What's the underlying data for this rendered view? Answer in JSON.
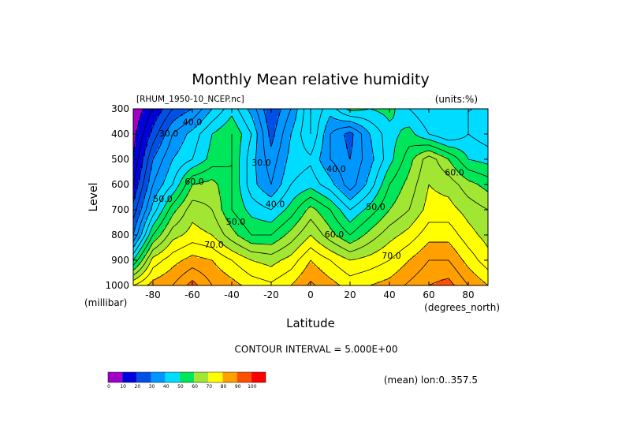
{
  "chart_data": {
    "type": "contour",
    "title": "Monthly Mean relative humidity",
    "dataset_label": "[RHUM_1950-10_NCEP.nc]",
    "units_label": "(units:%)",
    "xlabel": "Latitude",
    "x_units": "(degrees_north)",
    "ylabel": "Level",
    "y_units": "(millibar)",
    "xlim": [
      -90,
      90
    ],
    "ylim": [
      300,
      1000
    ],
    "y_inverted": true,
    "x_ticks": [
      -80,
      -60,
      -40,
      -20,
      0,
      20,
      40,
      60,
      80
    ],
    "y_ticks": [
      300,
      400,
      500,
      600,
      700,
      800,
      900,
      1000
    ],
    "x_tick_labels": [
      "-80",
      "-60",
      "-40",
      "-20",
      "0",
      "20",
      "40",
      "60",
      "80"
    ],
    "y_tick_labels": [
      "300",
      "400",
      "500",
      "600",
      "700",
      "800",
      "900",
      "1000"
    ],
    "contour_interval_text": "CONTOUR INTERVAL = 5.000E+00",
    "footer_text": "(mean) lon:0..357.5",
    "grid": false,
    "latitudes": [
      -90,
      -80,
      -70,
      -60,
      -50,
      -40,
      -30,
      -20,
      -10,
      0,
      10,
      20,
      30,
      40,
      50,
      60,
      70,
      80,
      90
    ],
    "levels": [
      300,
      400,
      500,
      600,
      700,
      800,
      900,
      1000
    ],
    "values": [
      [
        5,
        15,
        25,
        30,
        40,
        48,
        38,
        25,
        35,
        50,
        42,
        52,
        50,
        52,
        45,
        40,
        40,
        45,
        45
      ],
      [
        8,
        22,
        35,
        42,
        50,
        55,
        45,
        28,
        40,
        50,
        35,
        28,
        40,
        48,
        52,
        45,
        40,
        45,
        42
      ],
      [
        10,
        30,
        40,
        45,
        52,
        55,
        42,
        32,
        42,
        44,
        35,
        30,
        38,
        48,
        58,
        68,
        60,
        50,
        48
      ],
      [
        15,
        35,
        45,
        60,
        62,
        55,
        42,
        35,
        45,
        48,
        42,
        32,
        42,
        55,
        62,
        70,
        68,
        62,
        58
      ],
      [
        22,
        42,
        58,
        68,
        65,
        55,
        48,
        45,
        52,
        62,
        55,
        45,
        52,
        60,
        65,
        72,
        72,
        68,
        65
      ],
      [
        30,
        55,
        68,
        72,
        70,
        62,
        55,
        55,
        62,
        70,
        62,
        55,
        62,
        68,
        72,
        78,
        78,
        72,
        68
      ],
      [
        50,
        72,
        78,
        82,
        80,
        75,
        70,
        68,
        72,
        80,
        75,
        70,
        72,
        75,
        80,
        85,
        85,
        78,
        72
      ],
      [
        75,
        82,
        85,
        92,
        85,
        82,
        78,
        76,
        80,
        86,
        82,
        78,
        80,
        82,
        86,
        90,
        92,
        85,
        80
      ]
    ],
    "contour_labels": [
      {
        "text": "30.0",
        "lat": -72,
        "lev": 400
      },
      {
        "text": "40.0",
        "lat": -60,
        "lev": 355
      },
      {
        "text": "50.0",
        "lat": -75,
        "lev": 660
      },
      {
        "text": "60.0",
        "lat": -59,
        "lev": 590
      },
      {
        "text": "70.0",
        "lat": -49,
        "lev": 840
      },
      {
        "text": "50.0",
        "lat": -38,
        "lev": 750
      },
      {
        "text": "40.0",
        "lat": -18,
        "lev": 680
      },
      {
        "text": "30.0",
        "lat": -25,
        "lev": 515
      },
      {
        "text": "40.0",
        "lat": 13,
        "lev": 540
      },
      {
        "text": "60.0",
        "lat": 12,
        "lev": 800
      },
      {
        "text": "50.0",
        "lat": 33,
        "lev": 690
      },
      {
        "text": "70.0",
        "lat": 41,
        "lev": 885
      },
      {
        "text": "60.0",
        "lat": 73,
        "lev": 555
      }
    ],
    "colorbar": {
      "ticks": [
        "0",
        "10",
        "20",
        "30",
        "40",
        "50",
        "60",
        "70",
        "80",
        "90",
        "100"
      ],
      "colors": [
        "#a000c8",
        "#0000dc",
        "#0050e6",
        "#0096ff",
        "#00dcff",
        "#00e65a",
        "#a0e632",
        "#ffff00",
        "#ffa000",
        "#ff5000",
        "#ff0000"
      ]
    }
  }
}
